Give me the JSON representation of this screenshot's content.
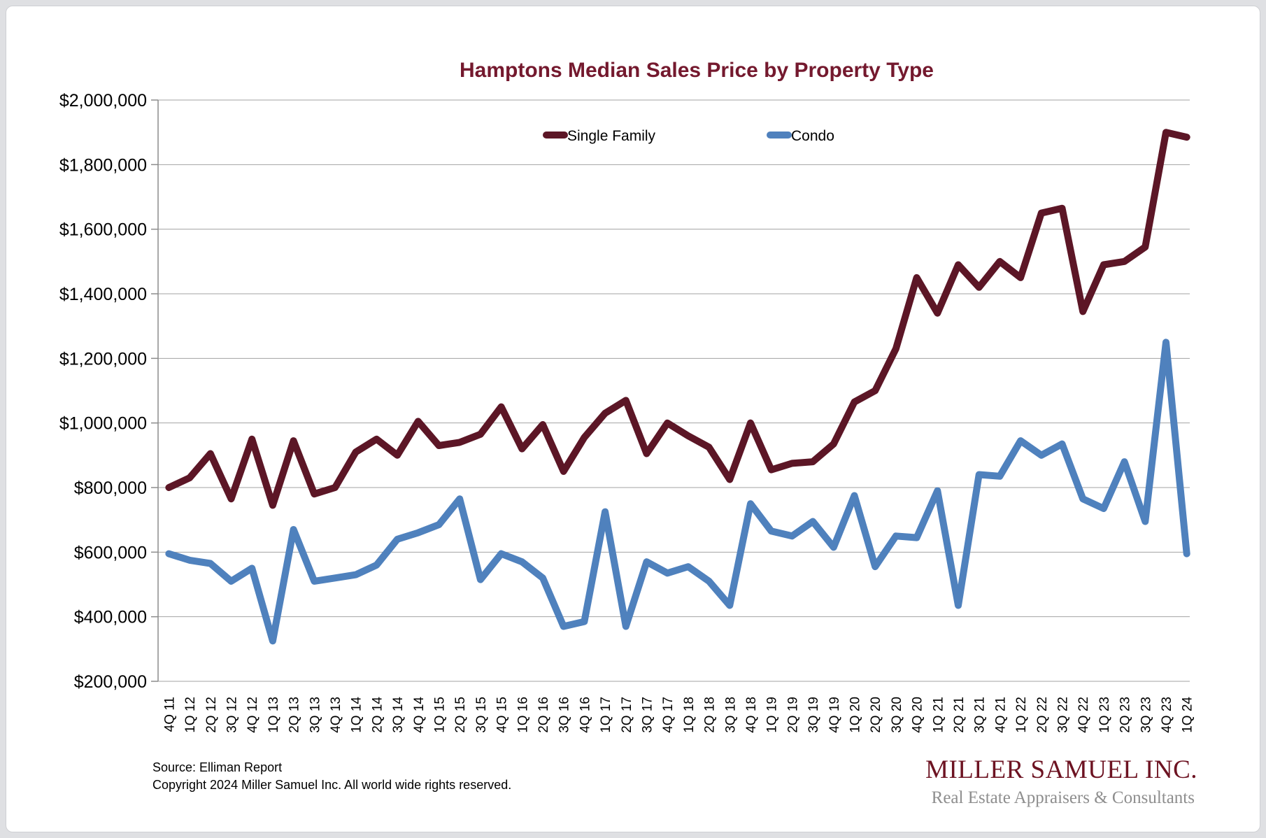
{
  "chart": {
    "title_color": "#74192e",
    "series_colors": {
      "single_family": "#5c1626",
      "condo": "#4f81bd"
    },
    "gridline_color": "#a3a3a3",
    "axis_color": "#8c8c8c"
  },
  "chart_data": {
    "type": "line",
    "title": "Hamptons Median Sales Price by Property Type",
    "categories": [
      "4Q 11",
      "1Q 12",
      "2Q 12",
      "3Q 12",
      "4Q 12",
      "1Q 13",
      "2Q 13",
      "3Q 13",
      "4Q 13",
      "1Q 14",
      "2Q 14",
      "3Q 14",
      "4Q 14",
      "1Q 15",
      "2Q 15",
      "3Q 15",
      "4Q 15",
      "1Q 16",
      "2Q 16",
      "3Q 16",
      "4Q 16",
      "1Q 17",
      "2Q 17",
      "3Q 17",
      "4Q 17",
      "1Q 18",
      "2Q 18",
      "3Q 18",
      "4Q 18",
      "1Q 19",
      "2Q 19",
      "3Q 19",
      "4Q 19",
      "1Q 20",
      "2Q 20",
      "3Q 20",
      "4Q 20",
      "1Q 21",
      "2Q 21",
      "3Q 21",
      "4Q 21",
      "1Q 22",
      "2Q 22",
      "3Q 22",
      "4Q 22",
      "1Q 23",
      "2Q 23",
      "3Q 23",
      "4Q 23",
      "1Q 24"
    ],
    "series": [
      {
        "name": "Single Family",
        "color": "#5c1626",
        "values": [
          800000,
          830000,
          905000,
          765000,
          950000,
          745000,
          945000,
          780000,
          800000,
          910000,
          950000,
          900000,
          1005000,
          930000,
          940000,
          965000,
          1050000,
          920000,
          995000,
          850000,
          955000,
          1030000,
          1070000,
          905000,
          1000000,
          960000,
          925000,
          825000,
          1000000,
          855000,
          875000,
          880000,
          935000,
          1065000,
          1100000,
          1230000,
          1450000,
          1340000,
          1490000,
          1420000,
          1500000,
          1450000,
          1650000,
          1665000,
          1345000,
          1490000,
          1500000,
          1545000,
          1900000,
          1885000
        ]
      },
      {
        "name": "Condo",
        "color": "#4f81bd",
        "values": [
          595000,
          575000,
          565000,
          510000,
          550000,
          325000,
          670000,
          510000,
          520000,
          530000,
          560000,
          640000,
          660000,
          685000,
          765000,
          515000,
          595000,
          570000,
          520000,
          370000,
          385000,
          725000,
          370000,
          570000,
          535000,
          555000,
          510000,
          435000,
          750000,
          665000,
          650000,
          695000,
          615000,
          775000,
          555000,
          650000,
          645000,
          790000,
          435000,
          840000,
          835000,
          945000,
          900000,
          935000,
          765000,
          735000,
          880000,
          695000,
          1250000,
          595000
        ]
      }
    ],
    "ylim": [
      200000,
      2000000
    ],
    "y_ticks": [
      200000,
      400000,
      600000,
      800000,
      1000000,
      1200000,
      1400000,
      1600000,
      1800000,
      2000000
    ],
    "y_tick_labels": [
      "$200,000",
      "$400,000",
      "$600,000",
      "$800,000",
      "$1,000,000",
      "$1,200,000",
      "$1,400,000",
      "$1,600,000",
      "$1,800,000",
      "$2,000,000"
    ],
    "xlabel": "",
    "ylabel": "",
    "grid": "horizontal",
    "legend_position": "top-center"
  },
  "footer": {
    "source": "Source: Elliman Report",
    "copyright": "Copyright 2024 Miller Samuel Inc.  All world wide rights reserved."
  },
  "logo": {
    "name": "MILLER SAMUEL INC.",
    "tagline": "Real Estate Appraisers & Consultants",
    "name_color": "#6d1322",
    "tagline_color": "#8e8e8e"
  }
}
